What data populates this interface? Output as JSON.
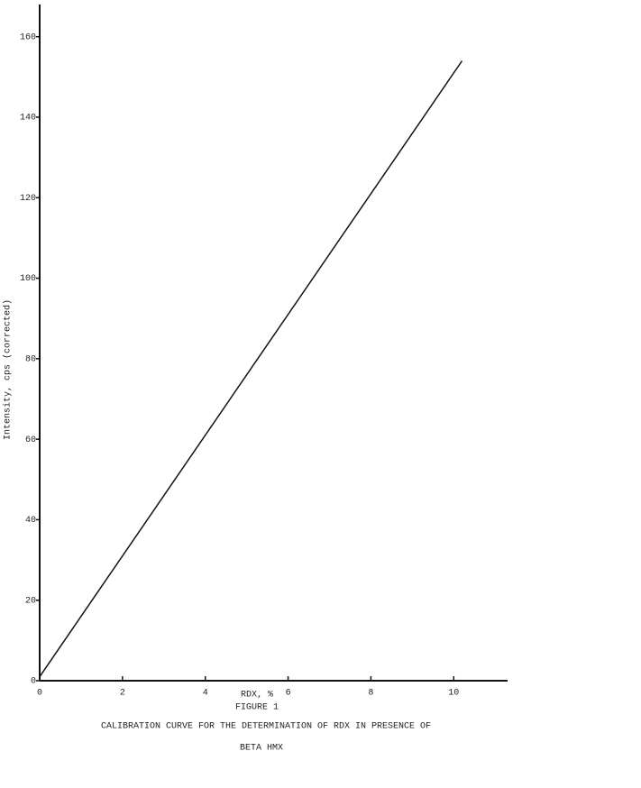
{
  "chart_data": {
    "type": "line",
    "title": "FIGURE 1",
    "caption": [
      "CALIBRATION CURVE FOR THE DETERMINATION OF RDX IN PRESENCE OF",
      "BETA HMX"
    ],
    "x_label": "RDX, %",
    "y_label": "Intensity, cps (corrected)",
    "x": [
      0,
      10.2
    ],
    "series": [
      {
        "color": "#111111",
        "values": [
          1,
          154
        ]
      }
    ],
    "xlim": [
      0,
      11.3
    ],
    "xticks": [
      0,
      2,
      4,
      6,
      8,
      10
    ],
    "ylim": [
      0,
      168
    ],
    "yticks": [
      0,
      20,
      40,
      60,
      80,
      100,
      120,
      140,
      160
    ],
    "grid": false
  }
}
